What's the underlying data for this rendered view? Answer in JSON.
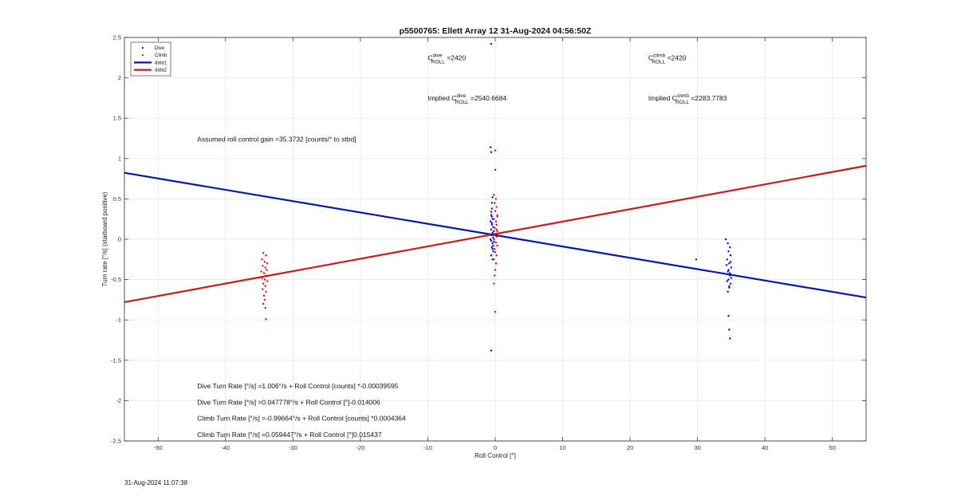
{
  "timestamp": "31-Aug-2024 11:07:38",
  "chart_data": {
    "type": "scatter",
    "title": "p5500765: Ellett Array 12 31-Aug-2024 04:56:50Z",
    "xlabel": "Roll Control [°]",
    "ylabel": "Turn rate [°/s] (starboard positive)",
    "xlim": [
      -55,
      55
    ],
    "ylim": [
      -2.5,
      2.5
    ],
    "xticks": [
      -50,
      -40,
      -30,
      -20,
      -10,
      0,
      10,
      20,
      30,
      40,
      50
    ],
    "yticks": [
      -2.5,
      -2,
      -1.5,
      -1,
      -0.5,
      0,
      0.5,
      1,
      1.5,
      2,
      2.5
    ],
    "xtick_labels": [
      "-50",
      "-40",
      "-30",
      "-20",
      "-10",
      "0",
      "10",
      "20",
      "30",
      "40",
      "50"
    ],
    "ytick_labels": [
      "-2.5",
      "-2",
      "-1.5",
      "-1",
      "-0.5",
      "0",
      "0.5",
      "1",
      "1.5",
      "2",
      "2.5"
    ],
    "grid": true,
    "legend_position": "top-left",
    "series": [
      {
        "name": "Dive",
        "kind": "points",
        "color": "#0000ff",
        "points": [
          [
            -0.6,
            2.42
          ],
          [
            -0.7,
            1.14
          ],
          [
            -0.6,
            1.08
          ],
          [
            -0.5,
            0.45
          ],
          [
            -0.4,
            0.52
          ],
          [
            -0.5,
            0.38
          ],
          [
            -0.6,
            0.3
          ],
          [
            -0.4,
            0.25
          ],
          [
            -0.5,
            0.2
          ],
          [
            -0.3,
            0.15
          ],
          [
            -0.6,
            0.12
          ],
          [
            -0.4,
            0.08
          ],
          [
            -0.5,
            0.05
          ],
          [
            -0.3,
            0.02
          ],
          [
            -0.6,
            -0.02
          ],
          [
            -0.4,
            -0.05
          ],
          [
            -0.5,
            -0.1
          ],
          [
            -0.3,
            -0.15
          ],
          [
            -0.6,
            -0.2
          ],
          [
            -0.4,
            -0.25
          ],
          [
            -0.5,
            0.28
          ],
          [
            -0.2,
            0.1
          ],
          [
            -0.7,
            0.0
          ],
          [
            -0.3,
            -0.08
          ],
          [
            -0.5,
            0.18
          ],
          [
            -0.4,
            -0.12
          ],
          [
            -0.6,
            0.34
          ],
          [
            -0.3,
            0.06
          ],
          [
            -0.2,
            -0.03
          ],
          [
            -0.7,
            0.22
          ],
          [
            -0.6,
            -1.38
          ],
          [
            29.8,
            -0.25
          ],
          [
            34.2,
            0.0
          ],
          [
            34.5,
            -0.05
          ],
          [
            34.8,
            -0.1
          ],
          [
            34.6,
            -0.15
          ],
          [
            34.9,
            -0.2
          ],
          [
            34.4,
            -0.25
          ],
          [
            34.7,
            -0.3
          ],
          [
            35.0,
            -0.35
          ],
          [
            34.5,
            -0.4
          ],
          [
            34.8,
            -0.45
          ],
          [
            34.6,
            -0.5
          ],
          [
            34.9,
            -0.55
          ],
          [
            34.7,
            -0.6
          ],
          [
            34.5,
            -0.65
          ],
          [
            34.8,
            -0.42
          ],
          [
            35.0,
            -0.48
          ],
          [
            34.3,
            -0.32
          ],
          [
            34.6,
            -0.38
          ],
          [
            34.9,
            -0.28
          ],
          [
            34.4,
            -0.52
          ],
          [
            34.7,
            -0.58
          ],
          [
            34.6,
            -0.95
          ],
          [
            34.7,
            -1.12
          ],
          [
            34.8,
            -1.23
          ]
        ]
      },
      {
        "name": "Climb",
        "kind": "points",
        "color": "#ff0000",
        "points": [
          [
            0.0,
            1.1
          ],
          [
            0.0,
            0.86
          ],
          [
            -0.2,
            0.55
          ],
          [
            0.1,
            0.5
          ],
          [
            -0.1,
            0.45
          ],
          [
            0.2,
            0.4
          ],
          [
            0.0,
            0.35
          ],
          [
            0.3,
            0.3
          ],
          [
            -0.2,
            0.25
          ],
          [
            0.1,
            0.22
          ],
          [
            0.2,
            0.18
          ],
          [
            -0.1,
            0.14
          ],
          [
            0.3,
            0.1
          ],
          [
            0.0,
            0.06
          ],
          [
            0.2,
            0.03
          ],
          [
            -0.2,
            0.0
          ],
          [
            0.1,
            -0.04
          ],
          [
            0.3,
            -0.08
          ],
          [
            -0.1,
            -0.12
          ],
          [
            0.0,
            -0.16
          ],
          [
            0.2,
            -0.2
          ],
          [
            -0.2,
            -0.25
          ],
          [
            0.1,
            -0.3
          ],
          [
            0.0,
            -0.38
          ],
          [
            -0.1,
            -0.45
          ],
          [
            -0.2,
            -0.55
          ],
          [
            0.3,
            0.28
          ],
          [
            0.2,
            0.12
          ],
          [
            -0.3,
            0.05
          ],
          [
            0.0,
            -0.9
          ],
          [
            -34.4,
            -0.17
          ],
          [
            -34.0,
            -0.2
          ],
          [
            -34.6,
            -0.25
          ],
          [
            -34.2,
            -0.28
          ],
          [
            -33.8,
            -0.3
          ],
          [
            -34.5,
            -0.33
          ],
          [
            -34.1,
            -0.35
          ],
          [
            -33.9,
            -0.38
          ],
          [
            -34.7,
            -0.4
          ],
          [
            -34.3,
            -0.42
          ],
          [
            -34.0,
            -0.45
          ],
          [
            -34.6,
            -0.48
          ],
          [
            -34.2,
            -0.5
          ],
          [
            -33.8,
            -0.52
          ],
          [
            -34.4,
            -0.55
          ],
          [
            -34.1,
            -0.58
          ],
          [
            -34.5,
            -0.62
          ],
          [
            -34.0,
            -0.65
          ],
          [
            -34.3,
            -0.7
          ],
          [
            -34.2,
            -0.75
          ],
          [
            -34.4,
            -0.8
          ],
          [
            -34.1,
            -0.85
          ],
          [
            -34.0,
            -0.99
          ]
        ]
      },
      {
        "name": "data1",
        "kind": "line",
        "color": "#0018b0",
        "x": [
          -55,
          55
        ],
        "y": [
          0.823,
          -0.7219
        ]
      },
      {
        "name": "data2",
        "kind": "line",
        "color": "#d01818",
        "x": [
          -55,
          55
        ],
        "y": [
          -0.7801,
          0.9104
        ]
      }
    ],
    "annotations": [
      {
        "base": "C",
        "sup": "dive",
        "sub": "ROLL",
        "value": "=2420",
        "x": -10,
        "y": 2.25
      },
      {
        "base": "C",
        "sup": "climb",
        "sub": "ROLL",
        "value": "=2420",
        "x": 22.7,
        "y": 2.25
      },
      {
        "prefix": "Implied ",
        "base": "C",
        "sup": "dive",
        "sub": "ROLL",
        "value": "=2540.6684",
        "x": -10,
        "y": 1.75
      },
      {
        "prefix": "Implied ",
        "base": "C",
        "sup": "climb",
        "sub": "ROLL",
        "value": "=2283.7783",
        "x": 22.7,
        "y": 1.75
      },
      {
        "text": "Assumed roll control gain =35.3732 [counts/° to stbd]",
        "x": -44.2,
        "y": 1.24
      },
      {
        "text": "Dive Turn Rate [°/s] =1.006°/s + Roll Control [counts] *-0.00039595",
        "x": -44.2,
        "y": -1.82
      },
      {
        "text": "Dive Turn Rate [°/s] =0.047778°/s + Roll Control [°]-0.014006",
        "x": -44.2,
        "y": -2.02
      },
      {
        "text": "Climb Turn Rate [°/s] =-0.99664°/s + Roll Control [counts] *0.0004364",
        "x": -44.2,
        "y": -2.22
      },
      {
        "text": "Climb Turn Rate [°/s] =0.059447°/s + Roll Control [°]0.015437",
        "x": -44.2,
        "y": -2.42
      }
    ]
  }
}
